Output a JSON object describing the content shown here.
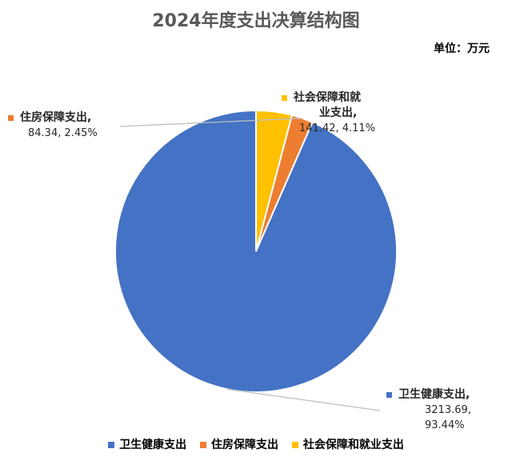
{
  "chart_data": {
    "type": "pie",
    "title": "2024年度支出决算结构图",
    "unit_label": "单位：万元",
    "slices": [
      {
        "name": "卫生健康支出",
        "value": 3213.69,
        "percent": "93.44%",
        "color": "#4472C4"
      },
      {
        "name": "住房保障支出",
        "value": 84.34,
        "percent": "2.45%",
        "color": "#ED7D31"
      },
      {
        "name": "社会保障和就业支出",
        "value": 141.42,
        "percent": "4.11%",
        "color": "#FFC000"
      }
    ],
    "labels": {
      "health": {
        "name": "卫生健康支出,",
        "line2": "3213.69,",
        "line3": "93.44%"
      },
      "housing": {
        "name": "住房保障支出,",
        "line2": "84.34, 2.45%"
      },
      "social": {
        "name_line1": "社会保障和就",
        "name_line2": "业支出,",
        "line3": "141.42, 4.11%"
      }
    },
    "legend": [
      "卫生健康支出",
      "住房保障支出",
      "社会保障和就业支出"
    ],
    "legend_position": "bottom",
    "start_angle_deg": 0,
    "direction": "counterclockwise"
  }
}
